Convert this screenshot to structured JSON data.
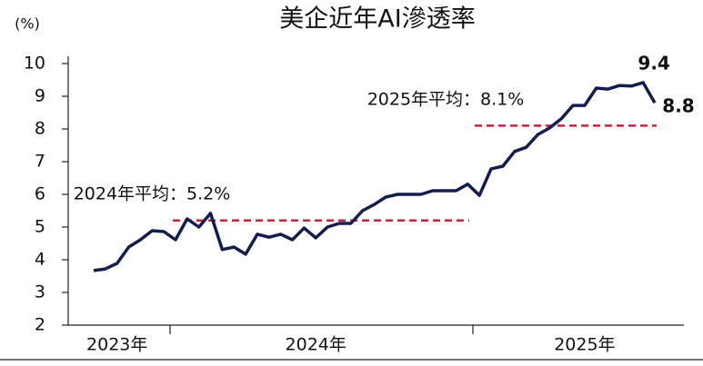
{
  "chart_data": {
    "type": "line",
    "title": "美企近年AI滲透率",
    "ylabel": "(%)",
    "categories": [
      null,
      null,
      "2023年",
      null,
      null,
      null,
      null,
      null,
      null,
      null,
      null,
      null,
      null,
      null,
      null,
      null,
      null,
      null,
      null,
      "2024年",
      null,
      null,
      null,
      null,
      null,
      null,
      null,
      null,
      null,
      null,
      null,
      null,
      null,
      null,
      null,
      null,
      null,
      null,
      null,
      null,
      null,
      null,
      "2025年",
      null,
      null,
      null,
      null,
      null,
      null
    ],
    "series": [
      {
        "name": "AI滲透率",
        "color": "#141e4e",
        "values": [
          3.67,
          3.72,
          3.89,
          4.39,
          4.61,
          4.89,
          4.86,
          4.61,
          5.25,
          5.0,
          5.42,
          4.31,
          4.39,
          4.17,
          4.78,
          4.69,
          4.78,
          4.61,
          4.97,
          4.67,
          5.0,
          5.11,
          5.11,
          5.5,
          5.69,
          5.92,
          6.0,
          6.0,
          6.0,
          6.11,
          6.11,
          6.11,
          6.31,
          5.97,
          6.78,
          6.86,
          7.31,
          7.44,
          7.83,
          8.03,
          8.31,
          8.72,
          8.72,
          9.25,
          9.22,
          9.33,
          9.31,
          9.42,
          8.8
        ],
        "value_labels": [
          null,
          null,
          null,
          null,
          null,
          null,
          null,
          null,
          null,
          null,
          null,
          null,
          null,
          null,
          null,
          null,
          null,
          null,
          null,
          null,
          null,
          null,
          null,
          null,
          null,
          null,
          null,
          null,
          null,
          null,
          null,
          null,
          null,
          null,
          null,
          null,
          null,
          null,
          null,
          null,
          null,
          null,
          null,
          null,
          null,
          null,
          null,
          "9.4",
          "8.8"
        ]
      }
    ],
    "annotations": [
      {
        "label": "2024年平均：5.2%",
        "value": 5.2,
        "color": "#c8233c"
      },
      {
        "label": "2025年平均：8.1%",
        "value": 8.1,
        "color": "#c8233c"
      }
    ],
    "ylim": [
      2,
      10
    ],
    "yticks": [
      2,
      3,
      4,
      5,
      6,
      7,
      8,
      9,
      10
    ]
  }
}
